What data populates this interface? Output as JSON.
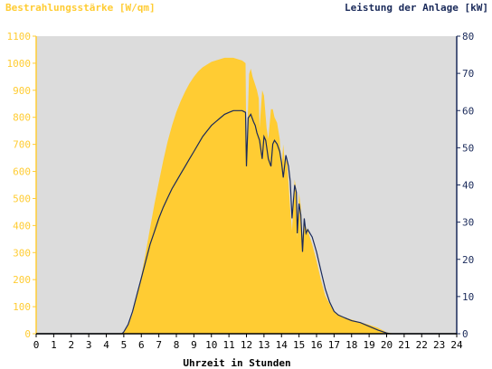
{
  "chart_data": {
    "type": "area",
    "left_axis_label": "Bestrahlungsstärke [W/qm]",
    "right_axis_label": "Leistung der Anlage [kW]",
    "xlabel": "Uhrzeit in Stunden",
    "x_ticks": [
      "0",
      "1",
      "2",
      "3",
      "4",
      "5",
      "6",
      "7",
      "8",
      "9",
      "10",
      "11",
      "12",
      "13",
      "14",
      "15",
      "16",
      "17",
      "18",
      "19",
      "20",
      "21",
      "22",
      "23",
      "24"
    ],
    "left_ticks": [
      "0",
      "100",
      "200",
      "300",
      "400",
      "500",
      "600",
      "700",
      "800",
      "900",
      "1000",
      "1100"
    ],
    "right_ticks": [
      "0",
      "10",
      "20",
      "30",
      "40",
      "50",
      "60",
      "70",
      "80"
    ],
    "xlim": [
      0,
      24
    ],
    "ylim_left": [
      0,
      1100
    ],
    "ylim_right": [
      0,
      80
    ],
    "grid": false,
    "colors": {
      "plot_background": "#dcdcdc",
      "irradiance_fill": "#ffcc33",
      "power_line": "#1a2a5a",
      "left_axis": "#ffcc33",
      "right_axis": "#1a2a5a"
    },
    "series": [
      {
        "axis": "left",
        "x": [
          0,
          4.8,
          5.0,
          5.25,
          5.5,
          5.75,
          6.0,
          6.25,
          6.5,
          6.75,
          7.0,
          7.25,
          7.5,
          7.75,
          8.0,
          8.25,
          8.5,
          8.75,
          9.0,
          9.25,
          9.5,
          9.75,
          10.0,
          10.25,
          10.5,
          10.75,
          11.0,
          11.25,
          11.5,
          11.75,
          11.95,
          12.0,
          12.15,
          12.25,
          12.35,
          12.5,
          12.6,
          12.7,
          12.75,
          12.9,
          13.0,
          13.15,
          13.25,
          13.4,
          13.5,
          13.6,
          13.75,
          13.9,
          14.0,
          14.1,
          14.2,
          14.3,
          14.4,
          14.5,
          14.6,
          14.75,
          14.85,
          14.9,
          15.0,
          15.1,
          15.2,
          15.3,
          15.4,
          15.5,
          15.6,
          15.75,
          16.0,
          16.25,
          16.5,
          16.75,
          17.0,
          17.25,
          17.5,
          17.75,
          18.0,
          18.5,
          19.0,
          19.5,
          19.8,
          20.0,
          20.2,
          20.4,
          20.5,
          24
        ],
        "values": [
          0,
          0,
          5,
          30,
          75,
          140,
          215,
          300,
          390,
          480,
          560,
          640,
          710,
          770,
          820,
          860,
          895,
          925,
          950,
          970,
          985,
          995,
          1005,
          1010,
          1015,
          1020,
          1020,
          1020,
          1015,
          1010,
          1000,
          640,
          960,
          980,
          950,
          920,
          900,
          870,
          760,
          900,
          880,
          760,
          720,
          830,
          830,
          800,
          780,
          720,
          610,
          700,
          620,
          650,
          560,
          460,
          380,
          570,
          530,
          350,
          520,
          470,
          350,
          420,
          390,
          380,
          360,
          330,
          270,
          200,
          140,
          110,
          80,
          72,
          62,
          58,
          52,
          42,
          33,
          22,
          12,
          5,
          3,
          1,
          0,
          0
        ]
      },
      {
        "axis": "right",
        "x": [
          0,
          4.9,
          5.0,
          5.25,
          5.5,
          5.75,
          6.0,
          6.25,
          6.5,
          6.75,
          7.0,
          7.25,
          7.5,
          7.75,
          8.0,
          8.25,
          8.5,
          8.75,
          9.0,
          9.25,
          9.5,
          9.75,
          10.0,
          10.25,
          10.5,
          10.75,
          11.0,
          11.25,
          11.5,
          11.75,
          11.95,
          12.0,
          12.1,
          12.25,
          12.4,
          12.5,
          12.6,
          12.75,
          12.9,
          13.0,
          13.1,
          13.25,
          13.4,
          13.5,
          13.6,
          13.75,
          13.9,
          14.0,
          14.1,
          14.25,
          14.4,
          14.5,
          14.6,
          14.75,
          14.85,
          14.9,
          15.0,
          15.1,
          15.2,
          15.3,
          15.4,
          15.5,
          15.75,
          16.0,
          16.25,
          16.5,
          16.75,
          17.0,
          17.25,
          17.5,
          17.75,
          18.0,
          18.5,
          19.0,
          19.5,
          19.8,
          20.0,
          20.2,
          20.5,
          24
        ],
        "values": [
          0,
          0,
          0.5,
          2.5,
          6,
          10.5,
          15,
          19.5,
          24,
          27.5,
          31,
          34,
          36.5,
          39,
          41,
          43,
          45,
          47,
          49,
          51,
          53,
          54.5,
          56,
          57,
          58,
          59,
          59.5,
          60,
          60,
          60,
          59.5,
          45,
          58,
          59,
          57,
          56,
          54,
          52,
          47,
          53,
          52,
          47,
          45,
          51,
          52,
          51,
          49,
          46,
          42,
          48,
          45,
          41,
          31,
          40,
          38,
          27,
          35,
          32,
          22,
          31,
          27,
          28,
          26,
          22,
          17,
          12,
          8.5,
          6,
          5,
          4.5,
          4,
          3.5,
          3,
          2,
          1,
          0.5,
          0.2,
          0,
          0,
          0
        ]
      }
    ]
  }
}
